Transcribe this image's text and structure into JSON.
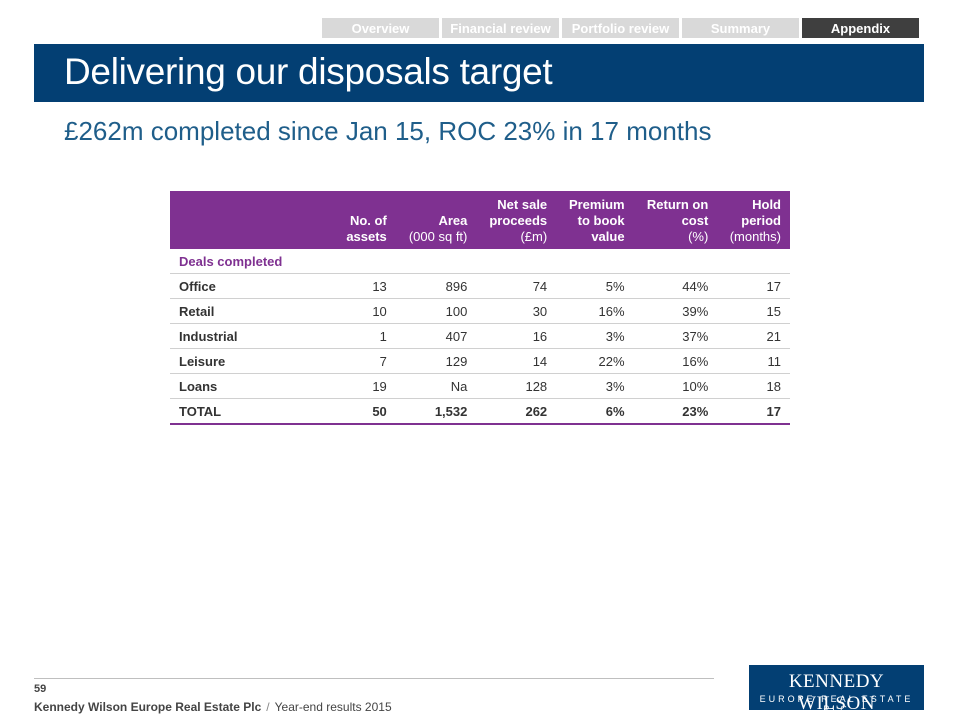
{
  "nav": {
    "tabs": [
      {
        "label": "Overview"
      },
      {
        "label": "Financial review"
      },
      {
        "label": "Portfolio review"
      },
      {
        "label": "Summary"
      },
      {
        "label": "Appendix"
      }
    ],
    "active": "Appendix"
  },
  "title": "Delivering our disposals target",
  "subtitle": "£262m completed since Jan 15, ROC 23% in 17 months",
  "table": {
    "headers": [
      {
        "l1": "",
        "l2": "No. of",
        "l3": "assets"
      },
      {
        "l1": "",
        "l2": "Area",
        "l3": "(000 sq ft)"
      },
      {
        "l1": "Net sale",
        "l2": "proceeds",
        "l3": "(£m)"
      },
      {
        "l1": "Premium",
        "l2": "to book",
        "l3": "value"
      },
      {
        "l1": "Return on",
        "l2": "cost",
        "l3": "(%)"
      },
      {
        "l1": "Hold",
        "l2": "period",
        "l3": "(months)"
      }
    ],
    "section_label": "Deals completed",
    "rows": [
      {
        "label": "Office",
        "values": [
          "13",
          "896",
          "74",
          "5%",
          "44%",
          "17"
        ]
      },
      {
        "label": "Retail",
        "values": [
          "10",
          "100",
          "30",
          "16%",
          "39%",
          "15"
        ]
      },
      {
        "label": "Industrial",
        "values": [
          "1",
          "407",
          "16",
          "3%",
          "37%",
          "21"
        ]
      },
      {
        "label": "Leisure",
        "values": [
          "7",
          "129",
          "14",
          "22%",
          "16%",
          "11"
        ]
      },
      {
        "label": "Loans",
        "values": [
          "19",
          "Na",
          "128",
          "3%",
          "10%",
          "18"
        ]
      }
    ],
    "total": {
      "label": "TOTAL",
      "values": [
        "50",
        "1,532",
        "262",
        "6%",
        "23%",
        "17"
      ]
    }
  },
  "footer": {
    "page_number": "59",
    "company": "Kennedy Wilson Europe Real Estate Plc",
    "separator": "/",
    "document": "Year-end results 2015"
  },
  "logo": {
    "name": "KENNEDY WILSON",
    "sub": "EUROPE REAL ESTATE PLC"
  },
  "colors": {
    "brand_navy": "#033f73",
    "table_purple": "#7f3191",
    "tab_inactive": "#d9d9d9",
    "tab_active": "#3f3f3f"
  }
}
